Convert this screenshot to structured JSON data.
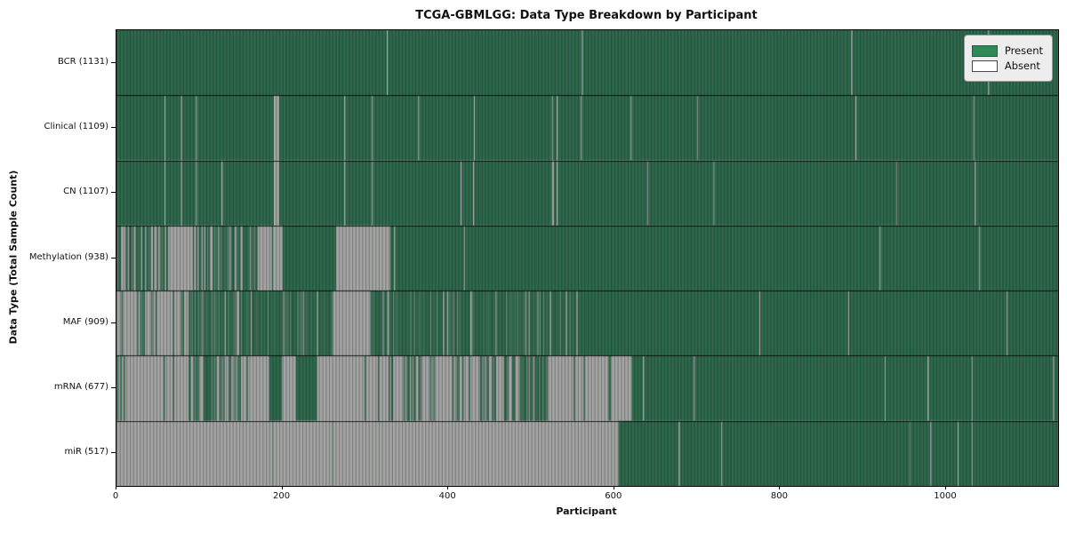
{
  "title": "TCGA-GBMLGG: Data Type Breakdown by Participant",
  "legend": {
    "items": [
      {
        "label": "Present",
        "color": "#2e8b57"
      },
      {
        "label": "Absent",
        "color": "#ffffff"
      }
    ]
  },
  "chart_data": {
    "type": "heatmap",
    "title": "TCGA-GBMLGG: Data Type Breakdown by Participant",
    "xlabel": "Participant",
    "ylabel": "Data Type (Total Sample Count)",
    "x_ticks": [
      0,
      200,
      400,
      600,
      800,
      1000
    ],
    "x_max": 1135,
    "n_participants": 1135,
    "legend_position": "upper right",
    "grid": false,
    "states": {
      "present": 1,
      "absent": 0
    },
    "colors": {
      "present_legend": "#2e8b57",
      "absent_legend": "#ffffff",
      "present_fill": "#2f6b4e",
      "absent_fill": "#a8a8a8",
      "stripe": "rgba(12,18,14,0.30)",
      "separator": "rgba(0,0,0,0.85)"
    },
    "rows": [
      {
        "label": "BCR (1131)",
        "data_type": "BCR",
        "present_count": 1131,
        "segments": [
          [
            0,
            326,
            1
          ],
          [
            326,
            327,
            0
          ],
          [
            327,
            561,
            1
          ],
          [
            561,
            562,
            0
          ],
          [
            562,
            886,
            1
          ],
          [
            886,
            887,
            0
          ],
          [
            887,
            1051,
            1
          ],
          [
            1051,
            1052,
            0
          ],
          [
            1052,
            1135,
            1
          ]
        ]
      },
      {
        "label": "Clinical (1109)",
        "data_type": "Clinical",
        "present_count": 1109,
        "segments": [
          [
            0,
            58,
            1
          ],
          [
            58,
            59,
            0
          ],
          [
            59,
            78,
            1
          ],
          [
            78,
            79,
            0
          ],
          [
            79,
            96,
            1
          ],
          [
            96,
            97,
            0
          ],
          [
            97,
            190,
            1
          ],
          [
            190,
            196,
            0
          ],
          [
            196,
            275,
            1
          ],
          [
            275,
            276,
            0
          ],
          [
            276,
            308,
            1
          ],
          [
            308,
            309,
            0
          ],
          [
            309,
            364,
            1
          ],
          [
            364,
            365,
            0
          ],
          [
            365,
            431,
            1
          ],
          [
            431,
            432,
            0
          ],
          [
            432,
            525,
            1
          ],
          [
            525,
            526,
            0
          ],
          [
            526,
            531,
            1
          ],
          [
            531,
            532,
            0
          ],
          [
            532,
            560,
            1
          ],
          [
            560,
            561,
            0
          ],
          [
            561,
            620,
            1
          ],
          [
            620,
            621,
            0
          ],
          [
            621,
            700,
            1
          ],
          [
            700,
            701,
            0
          ],
          [
            701,
            891,
            1
          ],
          [
            891,
            892,
            0
          ],
          [
            892,
            1033,
            1
          ],
          [
            1033,
            1034,
            0
          ],
          [
            1034,
            1135,
            1
          ]
        ]
      },
      {
        "label": "CN (1107)",
        "data_type": "CN",
        "present_count": 1107,
        "segments": [
          [
            0,
            58,
            1
          ],
          [
            58,
            59,
            0
          ],
          [
            59,
            78,
            1
          ],
          [
            78,
            79,
            0
          ],
          [
            79,
            96,
            1
          ],
          [
            96,
            97,
            0
          ],
          [
            97,
            127,
            1
          ],
          [
            127,
            128,
            0
          ],
          [
            128,
            190,
            1
          ],
          [
            190,
            196,
            0
          ],
          [
            196,
            275,
            1
          ],
          [
            275,
            276,
            0
          ],
          [
            276,
            308,
            1
          ],
          [
            308,
            309,
            0
          ],
          [
            309,
            415,
            1
          ],
          [
            415,
            416,
            0
          ],
          [
            416,
            430,
            1
          ],
          [
            430,
            431,
            0
          ],
          [
            431,
            525,
            1
          ],
          [
            525,
            527,
            0
          ],
          [
            527,
            531,
            1
          ],
          [
            531,
            532,
            0
          ],
          [
            532,
            640,
            1
          ],
          [
            640,
            641,
            0
          ],
          [
            641,
            720,
            1
          ],
          [
            720,
            721,
            0
          ],
          [
            721,
            940,
            1
          ],
          [
            940,
            941,
            0
          ],
          [
            941,
            1035,
            1
          ],
          [
            1035,
            1036,
            0
          ],
          [
            1036,
            1135,
            1
          ]
        ]
      },
      {
        "label": "Methylation (938)",
        "data_type": "Methylation",
        "present_count": 938,
        "segments": [
          [
            0,
            63,
            0.55
          ],
          [
            63,
            92,
            0
          ],
          [
            92,
            108,
            0.35
          ],
          [
            108,
            170,
            0.65
          ],
          [
            170,
            187,
            0
          ],
          [
            187,
            189,
            1
          ],
          [
            189,
            200,
            0
          ],
          [
            200,
            265,
            1
          ],
          [
            265,
            330,
            0
          ],
          [
            330,
            335,
            1
          ],
          [
            335,
            336,
            0
          ],
          [
            336,
            419,
            1
          ],
          [
            419,
            420,
            0
          ],
          [
            420,
            920,
            1
          ],
          [
            920,
            921,
            0
          ],
          [
            921,
            1040,
            1
          ],
          [
            1040,
            1041,
            0
          ],
          [
            1041,
            1135,
            1
          ]
        ]
      },
      {
        "label": "MAF (909)",
        "data_type": "MAF",
        "present_count": 909,
        "segments": [
          [
            0,
            88,
            0.1
          ],
          [
            88,
            162,
            0.6
          ],
          [
            162,
            218,
            0.82
          ],
          [
            218,
            261,
            0.7
          ],
          [
            261,
            305,
            0
          ],
          [
            305,
            560,
            0.78
          ],
          [
            560,
            775,
            1
          ],
          [
            775,
            776,
            0
          ],
          [
            776,
            882,
            1
          ],
          [
            882,
            883,
            0
          ],
          [
            883,
            1073,
            1
          ],
          [
            1073,
            1074,
            0
          ],
          [
            1074,
            1135,
            1
          ]
        ]
      },
      {
        "label": "mRNA (677)",
        "data_type": "mRNA",
        "present_count": 677,
        "segments": [
          [
            0,
            85,
            0.07
          ],
          [
            85,
            150,
            0.4
          ],
          [
            150,
            185,
            0.04
          ],
          [
            185,
            200,
            1
          ],
          [
            200,
            216,
            0
          ],
          [
            216,
            242,
            1
          ],
          [
            242,
            315,
            0.02
          ],
          [
            315,
            476,
            0.18
          ],
          [
            476,
            520,
            0.55
          ],
          [
            520,
            582,
            0.04
          ],
          [
            582,
            593,
            0
          ],
          [
            593,
            596,
            1
          ],
          [
            596,
            621,
            0
          ],
          [
            621,
            635,
            1
          ],
          [
            635,
            636,
            0
          ],
          [
            636,
            696,
            1
          ],
          [
            696,
            697,
            0
          ],
          [
            697,
            926,
            1
          ],
          [
            926,
            927,
            0
          ],
          [
            927,
            978,
            1
          ],
          [
            978,
            979,
            0
          ],
          [
            979,
            1031,
            1
          ],
          [
            1031,
            1032,
            0
          ],
          [
            1032,
            1129,
            1
          ],
          [
            1129,
            1130,
            0
          ],
          [
            1130,
            1135,
            1
          ]
        ]
      },
      {
        "label": "miR (517)",
        "data_type": "miR",
        "present_count": 517,
        "segments": [
          [
            0,
            188,
            0
          ],
          [
            188,
            189,
            1
          ],
          [
            189,
            260,
            0
          ],
          [
            260,
            261,
            1
          ],
          [
            261,
            605,
            0
          ],
          [
            605,
            678,
            1
          ],
          [
            678,
            679,
            0
          ],
          [
            679,
            729,
            1
          ],
          [
            729,
            730,
            0
          ],
          [
            730,
            956,
            1
          ],
          [
            956,
            957,
            0
          ],
          [
            957,
            981,
            1
          ],
          [
            981,
            982,
            0
          ],
          [
            982,
            1014,
            1
          ],
          [
            1014,
            1015,
            0
          ],
          [
            1015,
            1031,
            1
          ],
          [
            1031,
            1032,
            0
          ],
          [
            1032,
            1135,
            1
          ]
        ]
      }
    ]
  }
}
